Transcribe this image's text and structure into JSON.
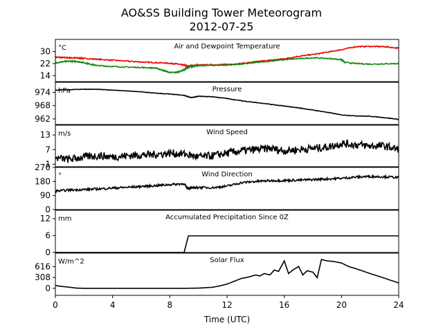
{
  "figure": {
    "title": "AO&SS Building Tower Meteorogram",
    "subtitle": "2012-07-25",
    "xlabel": "Time (UTC)"
  },
  "chart_data": [
    {
      "type": "line",
      "title": "Air and Dewpoint Temperature",
      "unit": "°C",
      "xlim": [
        0,
        24
      ],
      "ylim": [
        10,
        38
      ],
      "yticks": [
        14,
        22,
        30
      ],
      "series": [
        {
          "color": "#ee0000",
          "x": [
            0,
            0.5,
            1,
            1.5,
            2,
            3,
            4,
            5,
            6,
            7,
            8,
            8.6,
            9,
            9.3,
            9.6,
            10,
            11,
            12,
            13,
            14,
            15,
            16,
            17,
            18,
            19,
            20,
            21,
            22,
            23,
            24
          ],
          "y": [
            26.2,
            26.0,
            25.8,
            25.7,
            25.4,
            24.8,
            24.2,
            23.6,
            23.0,
            22.6,
            22.2,
            21.6,
            20.8,
            20.2,
            20.5,
            21.0,
            21.2,
            21.4,
            22.0,
            23.2,
            24.2,
            25.2,
            26.8,
            28.0,
            29.5,
            31.2,
            33.2,
            33.4,
            33.2,
            32.2
          ]
        },
        {
          "color": "#118811",
          "x": [
            0,
            0.5,
            1,
            1.5,
            2,
            2.5,
            3,
            4,
            5,
            6,
            7,
            7.5,
            8,
            8.5,
            9,
            9.3,
            9.6,
            10,
            11,
            12,
            13,
            14,
            15,
            16,
            17,
            18,
            19,
            20,
            20.2,
            21,
            22,
            23,
            24
          ],
          "y": [
            22.4,
            23.2,
            23.6,
            23.4,
            22.6,
            21.4,
            20.6,
            20.0,
            19.6,
            19.4,
            19.0,
            17.6,
            16.0,
            16.2,
            17.8,
            19.8,
            20.4,
            20.6,
            20.8,
            21.0,
            21.6,
            22.6,
            23.6,
            24.6,
            25.2,
            25.8,
            25.4,
            24.6,
            22.8,
            22.0,
            21.6,
            21.8,
            22.0
          ]
        }
      ]
    },
    {
      "type": "line",
      "title": "Pressure",
      "unit": "hPa",
      "xlim": [
        0,
        24
      ],
      "ylim": [
        959.5,
        978.5
      ],
      "yticks": [
        962,
        968,
        974
      ],
      "series": [
        {
          "color": "#000000",
          "x": [
            0,
            1,
            2,
            3,
            4,
            5,
            6,
            7,
            8,
            9,
            9.5,
            10,
            11,
            12,
            13,
            14,
            15,
            16,
            17,
            18,
            19,
            20,
            21,
            22,
            23,
            24
          ],
          "y": [
            975.0,
            975.2,
            975.4,
            975.3,
            975.0,
            974.6,
            974.2,
            973.6,
            973.2,
            972.6,
            971.6,
            972.2,
            972.0,
            971.2,
            970.2,
            969.4,
            968.6,
            967.8,
            967.0,
            966.0,
            965.0,
            963.8,
            963.4,
            963.2,
            962.6,
            961.8
          ]
        }
      ]
    },
    {
      "type": "line",
      "title": "Wind Speed",
      "unit": "m/s",
      "xlim": [
        0,
        24
      ],
      "ylim": [
        0,
        17
      ],
      "yticks": [
        1,
        7,
        13
      ],
      "series": [
        {
          "color": "#000000",
          "x": [
            0,
            1,
            2,
            3,
            4,
            5,
            6,
            7,
            8,
            9,
            10,
            11,
            12,
            13,
            14,
            15,
            16,
            17,
            18,
            19,
            20,
            21,
            22,
            23,
            24
          ],
          "y": [
            3.5,
            3.0,
            4.0,
            4.5,
            4.0,
            4.5,
            4.8,
            5.0,
            5.5,
            5.2,
            4.0,
            4.5,
            5.5,
            6.5,
            7.0,
            7.5,
            6.5,
            7.0,
            7.5,
            8.0,
            9.5,
            9.0,
            8.5,
            8.5,
            7.0
          ]
        }
      ]
    },
    {
      "type": "line",
      "title": "Wind Direction",
      "unit": "°",
      "xlim": [
        0,
        24
      ],
      "ylim": [
        0,
        270
      ],
      "yticks": [
        0,
        90,
        180,
        270
      ],
      "series": [
        {
          "color": "#000000",
          "x": [
            0,
            1,
            2,
            3,
            4,
            5,
            6,
            7,
            8,
            9,
            9.2,
            9.6,
            10,
            11,
            12,
            13,
            14,
            15,
            16,
            17,
            18,
            19,
            20,
            21,
            22,
            23,
            24
          ],
          "y": [
            118,
            125,
            128,
            132,
            138,
            142,
            148,
            153,
            160,
            165,
            140,
            138,
            142,
            140,
            150,
            172,
            180,
            185,
            186,
            188,
            192,
            196,
            200,
            208,
            212,
            210,
            205
          ]
        }
      ]
    },
    {
      "type": "line",
      "title": "Accumulated Precipitation Since 0Z",
      "unit": "mm",
      "xlim": [
        0,
        24
      ],
      "ylim": [
        0,
        15
      ],
      "yticks": [
        0,
        6,
        12
      ],
      "series": [
        {
          "color": "#000000",
          "x": [
            0,
            9.0,
            9.15,
            9.3,
            24
          ],
          "y": [
            0,
            0,
            3,
            5.9,
            5.9
          ]
        }
      ]
    },
    {
      "type": "line",
      "title": "Solar Flux",
      "unit": "W/m^2",
      "xlim": [
        0,
        24
      ],
      "ylim": [
        -200,
        1000
      ],
      "yticks": [
        0,
        308,
        616
      ],
      "series": [
        {
          "color": "#000000",
          "x": [
            0,
            0.3,
            1,
            1.5,
            2,
            4,
            6,
            8,
            9,
            10,
            11,
            11.5,
            12,
            12.5,
            13,
            13.5,
            14,
            14.3,
            14.6,
            15,
            15.3,
            15.6,
            16,
            16.3,
            16.6,
            17,
            17.3,
            17.6,
            18,
            18.3,
            18.6,
            19,
            19.5,
            20,
            20.5,
            21,
            22,
            23,
            24
          ],
          "y": [
            80,
            60,
            30,
            5,
            0,
            0,
            0,
            0,
            0,
            5,
            30,
            70,
            120,
            200,
            280,
            320,
            380,
            350,
            420,
            380,
            520,
            480,
            780,
            420,
            520,
            620,
            380,
            500,
            460,
            300,
            820,
            780,
            760,
            720,
            620,
            560,
            420,
            290,
            150
          ]
        }
      ]
    }
  ]
}
